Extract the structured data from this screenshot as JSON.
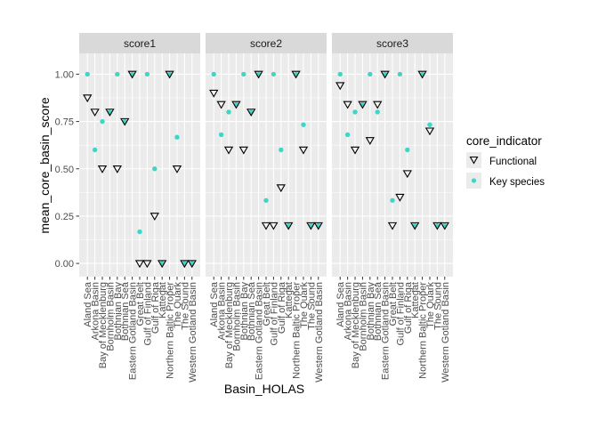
{
  "chart_data": {
    "type": "scatter",
    "xlabel": "Basin_HOLAS",
    "ylabel": "mean_core_basin_score",
    "ylim": [
      -0.07,
      1.11
    ],
    "yticks": [
      0.0,
      0.25,
      0.5,
      0.75,
      1.0
    ],
    "ytick_labels": [
      "0.00",
      "0.25",
      "0.50",
      "0.75",
      "1.00"
    ],
    "grid": true,
    "legend": {
      "title": "core_indicator",
      "position": "right",
      "entries": [
        {
          "label": "Functional",
          "shape": "triangle-down-open"
        },
        {
          "label": "Key species",
          "shape": "circle",
          "color": "#3fd6c7"
        }
      ]
    },
    "categories": [
      "Aland Sea",
      "Arkona Basin",
      "Bay of Mecklenburg",
      "Bornholm Basin",
      "Bothnian Bay",
      "Bothnian Sea",
      "Eastern Gotland Basin",
      "Great Belt",
      "Gulf of Finland",
      "Gulf of Riga",
      "Kattegat",
      "Northern Baltic Proper",
      "The Quark",
      "The Sound",
      "Western Gotland Basin"
    ],
    "panels": [
      {
        "title": "score1",
        "series": [
          {
            "name": "Functional",
            "values": [
              0.875,
              0.8,
              0.5,
              0.8,
              0.5,
              0.75,
              1.0,
              0.0,
              0.0,
              0.25,
              0.0,
              1.0,
              0.5,
              0.0,
              0.0
            ]
          },
          {
            "name": "Key species",
            "values": [
              1.0,
              0.6,
              0.75,
              0.8,
              1.0,
              0.75,
              1.0,
              0.167,
              1.0,
              0.5,
              0.0,
              1.0,
              0.667,
              0.0,
              0.0
            ]
          }
        ]
      },
      {
        "title": "score2",
        "series": [
          {
            "name": "Functional",
            "values": [
              0.9,
              0.84,
              0.6,
              0.84,
              0.6,
              0.8,
              1.0,
              0.2,
              0.2,
              0.4,
              0.2,
              1.0,
              0.6,
              0.2,
              0.2
            ]
          },
          {
            "name": "Key species",
            "values": [
              1.0,
              0.68,
              0.8,
              0.84,
              1.0,
              0.8,
              1.0,
              0.333,
              1.0,
              0.6,
              0.2,
              1.0,
              0.733,
              0.2,
              0.2
            ]
          }
        ]
      },
      {
        "title": "score3",
        "series": [
          {
            "name": "Functional",
            "values": [
              0.94,
              0.84,
              0.6,
              0.84,
              0.65,
              0.84,
              1.0,
              0.2,
              0.35,
              0.475,
              0.2,
              1.0,
              0.7,
              0.2,
              0.2
            ]
          },
          {
            "name": "Key species",
            "values": [
              1.0,
              0.68,
              0.8,
              0.84,
              1.0,
              0.8,
              1.0,
              0.333,
              1.0,
              0.6,
              0.2,
              1.0,
              0.733,
              0.2,
              0.2
            ]
          }
        ]
      }
    ]
  }
}
